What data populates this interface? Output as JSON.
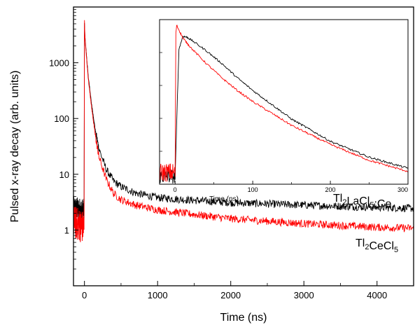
{
  "chart_data": [
    {
      "type": "line",
      "role": "main",
      "xlabel": "Time (ns)",
      "ylabel": "Pulsed x-ray decay (arb. units)",
      "xlim": [
        -150,
        4500
      ],
      "ylim": [
        0.1,
        10000
      ],
      "yscale": "log",
      "grid": false,
      "x_ticks": [
        0,
        1000,
        2000,
        3000,
        4000
      ],
      "y_ticks": [
        1,
        10,
        100,
        1000
      ],
      "x_tick_labels": [
        "0",
        "1000",
        "2000",
        "3000",
        "4000"
      ],
      "y_tick_labels": [
        "1",
        "10",
        "100",
        "1000"
      ],
      "series": [
        {
          "label_main": "Tl",
          "label_sub1": "2",
          "label_mid": "LaCl",
          "label_sub2": "5",
          "label_tail": ":Ce",
          "color": "#000000",
          "x": [
            -150,
            -5,
            0,
            5,
            20,
            50,
            100,
            150,
            200,
            300,
            400,
            500,
            700,
            1000,
            1500,
            2000,
            3000,
            4000,
            4500
          ],
          "y": [
            2.5,
            2.2,
            5200,
            3200,
            1800,
            600,
            170,
            60,
            28,
            12,
            7.5,
            6.0,
            4.6,
            3.8,
            3.4,
            3.1,
            2.8,
            2.55,
            2.45
          ]
        },
        {
          "label_main": "Tl",
          "label_sub1": "2",
          "label_mid": "CeCl",
          "label_sub2": "5",
          "label_tail": "",
          "color": "#ff0000",
          "x": [
            -150,
            -5,
            0,
            5,
            20,
            50,
            100,
            150,
            200,
            300,
            400,
            500,
            700,
            1000,
            1500,
            2000,
            3000,
            4000,
            4500
          ],
          "y": [
            1.4,
            1.1,
            5800,
            3400,
            1700,
            550,
            150,
            48,
            20,
            8,
            4.5,
            3.5,
            2.8,
            2.3,
            1.9,
            1.6,
            1.3,
            1.12,
            1.08
          ]
        }
      ]
    },
    {
      "type": "line",
      "role": "inset",
      "xlabel": "Time (ns)",
      "xlim": [
        -20,
        300
      ],
      "x_ticks": [
        0,
        100,
        200,
        300
      ],
      "x_tick_labels": [
        "0",
        "100",
        "200",
        "300"
      ],
      "series": [
        {
          "color": "#000000",
          "x": [
            -20,
            0,
            3,
            5,
            10,
            15,
            20,
            40,
            60,
            80,
            100,
            150,
            200,
            250,
            300
          ],
          "y": [
            0.03,
            0.03,
            0.55,
            0.85,
            0.93,
            0.925,
            0.91,
            0.84,
            0.76,
            0.67,
            0.59,
            0.41,
            0.27,
            0.17,
            0.1
          ]
        },
        {
          "color": "#ff0000",
          "x": [
            -20,
            0,
            1,
            2,
            5,
            10,
            20,
            40,
            60,
            80,
            100,
            150,
            200,
            250,
            300
          ],
          "y": [
            0.05,
            0.05,
            0.95,
            1.0,
            0.97,
            0.92,
            0.86,
            0.76,
            0.67,
            0.59,
            0.52,
            0.37,
            0.25,
            0.15,
            0.08
          ]
        }
      ]
    }
  ]
}
